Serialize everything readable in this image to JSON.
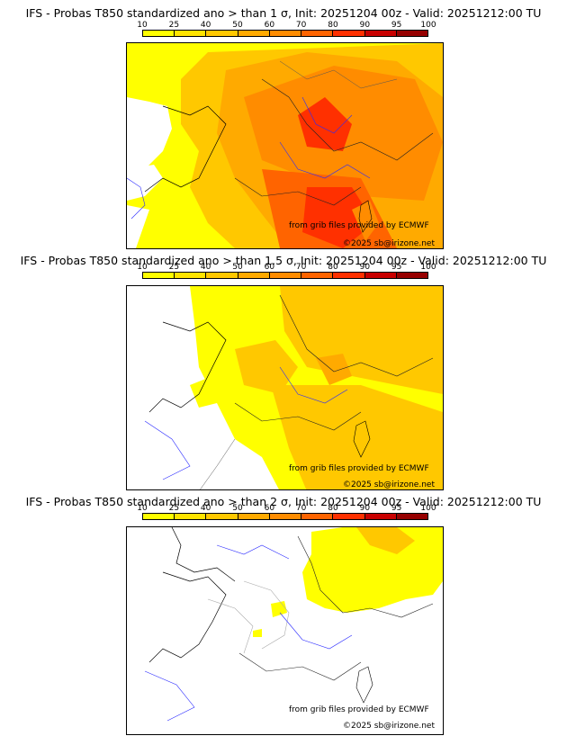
{
  "colorbar": {
    "ticks": [
      "10",
      "25",
      "40",
      "50",
      "60",
      "70",
      "80",
      "90",
      "95",
      "100"
    ],
    "colors": [
      "#ffff00",
      "#ffe400",
      "#ffc800",
      "#ffaa00",
      "#ff8c00",
      "#ff6400",
      "#ff3000",
      "#c80000",
      "#960000"
    ]
  },
  "credits": {
    "source": "from grib files provided by ECMWF",
    "copyright": "©2025 sb@irizone.net"
  },
  "panels": [
    {
      "title": "IFS - Probas T850  standardized ano > than 1 σ, Init: 20251204 00z - Valid: 20251212:00 TU"
    },
    {
      "title": "IFS - Probas T850  standardized ano > than 1.5 σ, Init: 20251204 00z - Valid: 20251212:00 TU"
    },
    {
      "title": "IFS - Probas T850  standardized ano > than 2 σ, Init: 20251204 00z - Valid: 20251212:00 TU"
    }
  ]
}
